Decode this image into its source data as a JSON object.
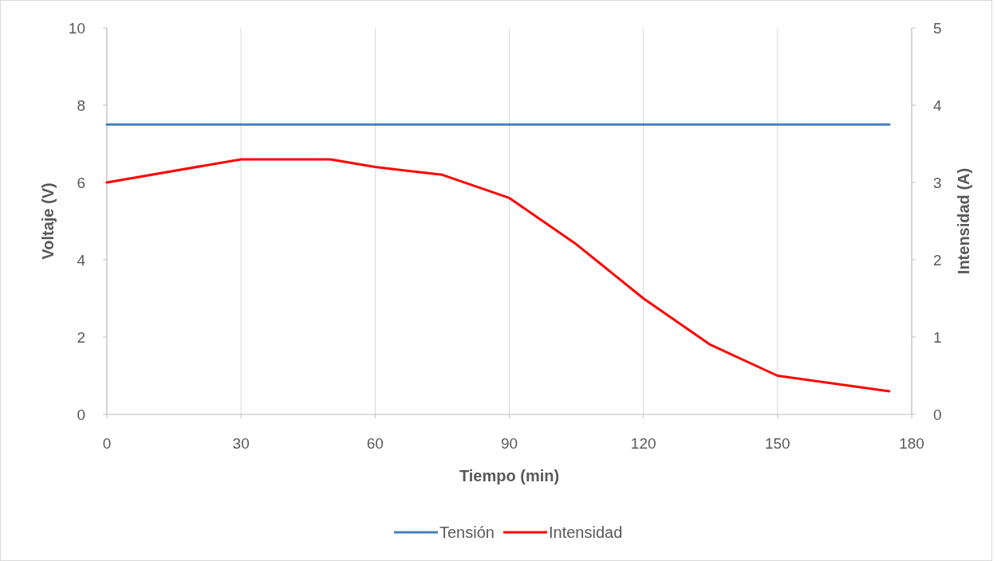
{
  "chart_data": {
    "type": "line",
    "xlabel": "Tiempo (min)",
    "ylabel": "Voltaje (V)",
    "y2label": "Intensidad (A)",
    "x": [
      0,
      30,
      50,
      60,
      75,
      90,
      105,
      120,
      135,
      150,
      175
    ],
    "series": [
      {
        "name": "Tensión",
        "color": "#4a7ebb",
        "values": [
          7.5,
          7.5,
          7.5,
          7.5,
          7.5,
          7.5,
          7.5,
          7.5,
          7.5,
          7.5,
          7.5
        ]
      },
      {
        "name": "Intensidad",
        "color": "#ff0000",
        "axis": "y2",
        "values": [
          3.0,
          3.3,
          3.3,
          3.2,
          3.1,
          2.8,
          2.2,
          1.5,
          0.9,
          0.5,
          0.3
        ]
      }
    ],
    "xlim": [
      0,
      180
    ],
    "xticks": [
      0,
      30,
      60,
      90,
      120,
      150,
      180
    ],
    "ylim": [
      0,
      10
    ],
    "yticks": [
      0,
      2,
      4,
      6,
      8,
      10
    ],
    "y2lim": [
      0,
      5
    ],
    "y2ticks": [
      0,
      1,
      2,
      3,
      4,
      5
    ],
    "grid": "x",
    "legend": "bottom",
    "marker": "none",
    "line_style": "solid"
  }
}
